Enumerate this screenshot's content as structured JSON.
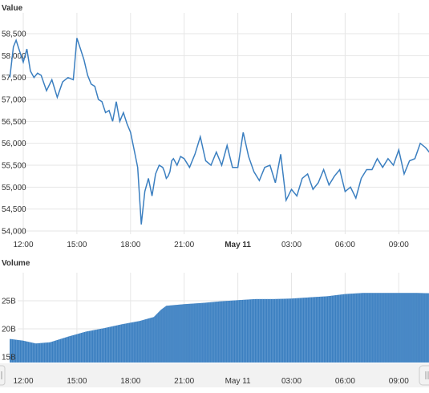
{
  "colors": {
    "line": "#3b7fc0",
    "volume_fill": "#3b7fc0",
    "grid": "#e6e6e6",
    "text": "#333333",
    "navigator_band": "#f2f2f2"
  },
  "chart_data": [
    {
      "type": "line",
      "title": "Value",
      "ylim": [
        54000,
        58800
      ],
      "y_ticks": [
        "54,000",
        "54,500",
        "55,000",
        "55,500",
        "56,000",
        "56,500",
        "57,000",
        "57,500",
        "58,000",
        "58,500"
      ],
      "x_ticks": [
        "12:00",
        "15:00",
        "18:00",
        "21:00",
        "May 11",
        "03:00",
        "06:00",
        "09:00"
      ],
      "x_tick_hours": [
        0,
        3,
        6,
        9,
        12,
        15,
        18,
        21
      ],
      "grid": true,
      "series": [
        {
          "x_hours": [
            -0.75,
            -0.55,
            -0.4,
            -0.2,
            0.0,
            0.2,
            0.4,
            0.6,
            0.8,
            1.0,
            1.3,
            1.6,
            1.9,
            2.2,
            2.5,
            2.8,
            3.0,
            3.2,
            3.4,
            3.6,
            3.8,
            4.0,
            4.2,
            4.4,
            4.6,
            4.8,
            5.0,
            5.2,
            5.4,
            5.6,
            5.8,
            6.0,
            6.2,
            6.4,
            6.6,
            6.8,
            7.0,
            7.2,
            7.4,
            7.6,
            7.8,
            7.9,
            8.0,
            8.1,
            8.2,
            8.3,
            8.4,
            8.6,
            8.8,
            9.0,
            9.3,
            9.6,
            9.9,
            10.2,
            10.5,
            10.8,
            11.1,
            11.4,
            11.7,
            12.0,
            12.3,
            12.6,
            12.9,
            13.2,
            13.5,
            13.8,
            14.1,
            14.4,
            14.7,
            15.0,
            15.3,
            15.6,
            15.9,
            16.2,
            16.5,
            16.8,
            17.1,
            17.4,
            17.7,
            18.0,
            18.3,
            18.6,
            18.9,
            19.2,
            19.5,
            19.8,
            20.1,
            20.4,
            20.7,
            21.0,
            21.3,
            21.6,
            21.9,
            22.2,
            22.5,
            22.8,
            23.1
          ],
          "values": [
            57500,
            58200,
            58350,
            58100,
            57850,
            58150,
            57650,
            57500,
            57600,
            57550,
            57200,
            57450,
            57050,
            57400,
            57500,
            57450,
            58400,
            58150,
            57900,
            57550,
            57350,
            57300,
            57000,
            56950,
            56700,
            56750,
            56500,
            56950,
            56500,
            56700,
            56450,
            56250,
            55850,
            55450,
            54150,
            54900,
            55200,
            54800,
            55300,
            55500,
            55450,
            55350,
            55200,
            55250,
            55350,
            55600,
            55650,
            55500,
            55700,
            55650,
            55450,
            55750,
            56150,
            55600,
            55500,
            55800,
            55500,
            55950,
            55450,
            55450,
            56250,
            55700,
            55350,
            55150,
            55450,
            55500,
            55100,
            55750,
            54700,
            54950,
            54800,
            55200,
            55300,
            54950,
            55100,
            55400,
            55050,
            55250,
            55400,
            54900,
            55000,
            54750,
            55200,
            55400,
            55400,
            55650,
            55450,
            55650,
            55500,
            55850,
            55300,
            55600,
            55650,
            56000,
            55900,
            55750,
            55950
          ]
        }
      ]
    },
    {
      "type": "area",
      "title": "Volume",
      "ylim": [
        14000000000,
        30000000000
      ],
      "y_ticks": [
        "15B",
        "20B",
        "25B"
      ],
      "x_ticks": [
        "12:00",
        "15:00",
        "18:00",
        "21:00",
        "May 11",
        "03:00",
        "06:00",
        "09:00"
      ],
      "x_tick_hours": [
        0,
        3,
        6,
        9,
        12,
        15,
        18,
        21
      ],
      "grid": true,
      "series": [
        {
          "x_hours": [
            -0.75,
            0.0,
            0.7,
            1.5,
            2.5,
            3.5,
            4.5,
            5.5,
            6.5,
            7.3,
            7.7,
            8.0,
            9.0,
            10.0,
            11.0,
            12.0,
            13.0,
            14.0,
            15.0,
            16.0,
            17.0,
            18.0,
            19.0,
            20.0,
            21.0,
            22.0,
            23.0,
            23.1
          ],
          "values": [
            18200000000,
            17900000000,
            17400000000,
            17600000000,
            18600000000,
            19500000000,
            20100000000,
            20800000000,
            21400000000,
            22100000000,
            23400000000,
            24100000000,
            24400000000,
            24600000000,
            24900000000,
            25100000000,
            25300000000,
            25300000000,
            25400000000,
            25600000000,
            25800000000,
            26200000000,
            26400000000,
            26400000000,
            26400000000,
            26400000000,
            26300000000,
            26200000000
          ]
        }
      ]
    }
  ]
}
